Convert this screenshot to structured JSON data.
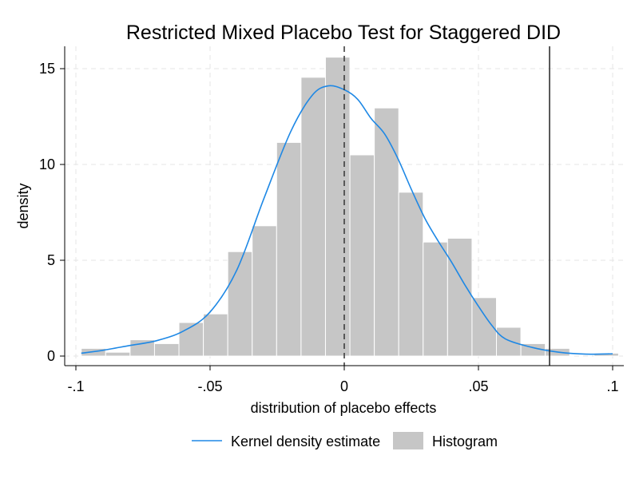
{
  "chart_data": {
    "type": "bar",
    "title": "Restricted Mixed Placebo Test for Staggered DID",
    "xlabel": "distribution of placebo effects",
    "ylabel": "density",
    "xlim": [
      -0.1,
      0.1
    ],
    "ylim": [
      0,
      16
    ],
    "x_ticks": [
      -0.1,
      -0.05,
      0,
      0.05,
      0.1
    ],
    "x_tick_labels": [
      "-.1",
      "-.05",
      "0",
      ".05",
      ".1"
    ],
    "y_ticks": [
      0,
      5,
      10,
      15
    ],
    "y_tick_labels": [
      "0",
      "5",
      "10",
      "15"
    ],
    "grid": true,
    "legend_position": "bottom",
    "histogram": {
      "name": "Histogram",
      "color": "#c6c6c6",
      "bin_width": 0.0091,
      "bins": [
        {
          "x_start": -0.098,
          "density": 0.4
        },
        {
          "x_start": -0.0889,
          "density": 0.2
        },
        {
          "x_start": -0.0798,
          "density": 0.85
        },
        {
          "x_start": -0.0707,
          "density": 0.65
        },
        {
          "x_start": -0.0616,
          "density": 1.75
        },
        {
          "x_start": -0.0525,
          "density": 2.2
        },
        {
          "x_start": -0.0434,
          "density": 5.45
        },
        {
          "x_start": -0.0343,
          "density": 6.8
        },
        {
          "x_start": -0.0252,
          "density": 11.15
        },
        {
          "x_start": -0.0161,
          "density": 14.55
        },
        {
          "x_start": -0.007,
          "density": 15.6
        },
        {
          "x_start": 0.0021,
          "density": 10.5
        },
        {
          "x_start": 0.0112,
          "density": 12.95
        },
        {
          "x_start": 0.0203,
          "density": 8.55
        },
        {
          "x_start": 0.0294,
          "density": 5.95
        },
        {
          "x_start": 0.0385,
          "density": 6.15
        },
        {
          "x_start": 0.0476,
          "density": 3.05
        },
        {
          "x_start": 0.0567,
          "density": 1.5
        },
        {
          "x_start": 0.0658,
          "density": 0.65
        },
        {
          "x_start": 0.0749,
          "density": 0.4
        },
        {
          "x_start": 0.0931,
          "density": 0.15
        }
      ]
    },
    "kde": {
      "name": "Kernel density estimate",
      "color": "#1e88e5",
      "points": [
        [
          -0.098,
          0.15
        ],
        [
          -0.09,
          0.3
        ],
        [
          -0.08,
          0.55
        ],
        [
          -0.07,
          0.8
        ],
        [
          -0.06,
          1.3
        ],
        [
          -0.05,
          2.3
        ],
        [
          -0.04,
          4.5
        ],
        [
          -0.03,
          8.2
        ],
        [
          -0.02,
          11.7
        ],
        [
          -0.012,
          13.6
        ],
        [
          -0.006,
          14.1
        ],
        [
          0.0,
          13.9
        ],
        [
          0.005,
          13.4
        ],
        [
          0.01,
          12.4
        ],
        [
          0.015,
          11.6
        ],
        [
          0.02,
          10.3
        ],
        [
          0.025,
          8.7
        ],
        [
          0.03,
          7.2
        ],
        [
          0.035,
          6.0
        ],
        [
          0.04,
          4.9
        ],
        [
          0.045,
          3.7
        ],
        [
          0.05,
          2.6
        ],
        [
          0.055,
          1.6
        ],
        [
          0.06,
          0.9
        ],
        [
          0.07,
          0.45
        ],
        [
          0.08,
          0.2
        ],
        [
          0.09,
          0.1
        ],
        [
          0.1,
          0.12
        ]
      ]
    },
    "reference_lines": [
      {
        "x": 0,
        "style": "dashed",
        "color": "#333333"
      },
      {
        "x": 0.0765,
        "style": "solid",
        "color": "#222222"
      }
    ],
    "legend": [
      {
        "label": "Kernel density estimate",
        "kind": "line",
        "color": "#1e88e5"
      },
      {
        "label": "Histogram",
        "kind": "box",
        "color": "#c6c6c6"
      }
    ]
  }
}
